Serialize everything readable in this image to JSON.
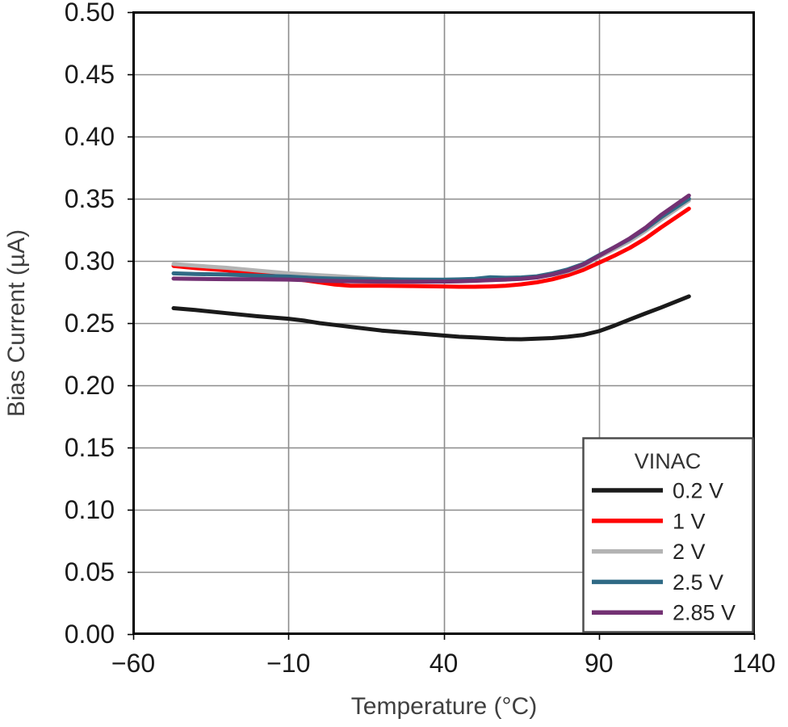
{
  "figure": {
    "background": "#ffffff",
    "plot_border_color": "#000000",
    "grid_color": "#8c8c8c",
    "tick_label_color": "#1a1a1a",
    "axis_title_color": "#404040"
  },
  "x_axis": {
    "title": "Temperature (°C)",
    "tick_labels": [
      "−60",
      "−10",
      "40",
      "90",
      "140"
    ],
    "tick_values": [
      -60,
      -10,
      40,
      90,
      140
    ],
    "min": -60,
    "max": 140
  },
  "y_axis": {
    "title": "Bias Current (µA)",
    "tick_labels": [
      "0.00",
      "0.05",
      "0.10",
      "0.15",
      "0.20",
      "0.25",
      "0.30",
      "0.35",
      "0.40",
      "0.45",
      "0.50"
    ],
    "tick_values": [
      0,
      0.05,
      0.1,
      0.15,
      0.2,
      0.25,
      0.3,
      0.35,
      0.4,
      0.45,
      0.5
    ],
    "min": 0,
    "max": 0.5
  },
  "legend": {
    "title": "VINAC",
    "position": "lower right",
    "border_color": "#4d4d4d",
    "entries": [
      {
        "label": "0.2 V",
        "color": "#1a1a1a"
      },
      {
        "label": "1 V",
        "color": "#ff0000"
      },
      {
        "label": "2 V",
        "color": "#b3b3b3"
      },
      {
        "label": "2.5 V",
        "color": "#2f6a85"
      },
      {
        "label": "2.85 V",
        "color": "#733173"
      }
    ]
  },
  "chart_data": {
    "type": "line",
    "title": "",
    "xlabel": "Temperature (°C)",
    "ylabel": "Bias Current (µA)",
    "xlim": [
      -60,
      140
    ],
    "ylim": [
      0,
      0.5
    ],
    "grid": true,
    "legend_title": "VINAC",
    "legend_position": "lower right",
    "x": [
      -47,
      -40,
      -30,
      -20,
      -10,
      -5,
      0,
      5,
      10,
      20,
      30,
      40,
      45,
      50,
      55,
      60,
      65,
      70,
      75,
      80,
      85,
      90,
      95,
      100,
      105,
      110,
      119
    ],
    "series": [
      {
        "name": "0.2 V",
        "color": "#1a1a1a",
        "values": [
          0.262,
          0.2605,
          0.258,
          0.2555,
          0.2535,
          0.252,
          0.25,
          0.2485,
          0.247,
          0.244,
          0.242,
          0.24,
          0.239,
          0.2385,
          0.2378,
          0.2372,
          0.237,
          0.2375,
          0.238,
          0.239,
          0.2405,
          0.2435,
          0.248,
          0.253,
          0.2578,
          0.2625,
          0.2715
        ]
      },
      {
        "name": "1 V",
        "color": "#ff0000",
        "values": [
          0.296,
          0.2942,
          0.2925,
          0.29,
          0.2865,
          0.2845,
          0.2828,
          0.281,
          0.28,
          0.28,
          0.2798,
          0.2795,
          0.2792,
          0.2792,
          0.2795,
          0.28,
          0.2812,
          0.2828,
          0.2852,
          0.2885,
          0.2928,
          0.2985,
          0.3042,
          0.3105,
          0.318,
          0.3268,
          0.342
        ]
      },
      {
        "name": "2 V",
        "color": "#b3b3b3",
        "values": [
          0.2975,
          0.2962,
          0.2945,
          0.2922,
          0.29,
          0.2892,
          0.2885,
          0.2878,
          0.287,
          0.2856,
          0.2848,
          0.2845,
          0.2843,
          0.2843,
          0.2846,
          0.285,
          0.2858,
          0.287,
          0.2888,
          0.2915,
          0.2962,
          0.3032,
          0.3095,
          0.316,
          0.324,
          0.333,
          0.3485
        ]
      },
      {
        "name": "2.5 V",
        "color": "#2f6a85",
        "values": [
          0.29,
          0.2895,
          0.289,
          0.2882,
          0.2874,
          0.2867,
          0.2861,
          0.2857,
          0.2855,
          0.2851,
          0.285,
          0.2849,
          0.2851,
          0.2856,
          0.2868,
          0.2864,
          0.2867,
          0.2876,
          0.29,
          0.2932,
          0.2976,
          0.3045,
          0.311,
          0.3177,
          0.3257,
          0.335,
          0.35
        ]
      },
      {
        "name": "2.85 V",
        "color": "#733173",
        "values": [
          0.2858,
          0.2855,
          0.2853,
          0.2852,
          0.285,
          0.2846,
          0.2841,
          0.2838,
          0.2836,
          0.2834,
          0.2833,
          0.2834,
          0.2836,
          0.284,
          0.2846,
          0.285,
          0.2856,
          0.2867,
          0.289,
          0.2922,
          0.297,
          0.304,
          0.311,
          0.3182,
          0.3266,
          0.3368,
          0.3525
        ]
      }
    ]
  }
}
